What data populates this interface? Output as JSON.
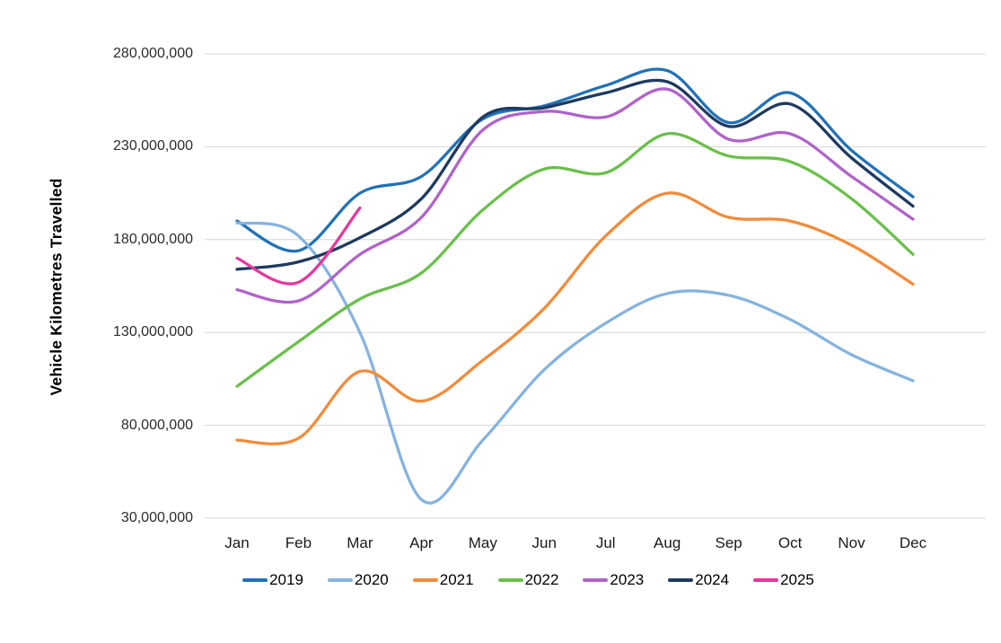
{
  "chart_data": {
    "type": "line",
    "title": "",
    "xlabel": "",
    "ylabel": "Vehicle Kilometres Travelled",
    "grid": "horizontal-only",
    "legend_position": "bottom",
    "smooth_lines": true,
    "categories": [
      "Jan",
      "Feb",
      "Mar",
      "Apr",
      "May",
      "Jun",
      "Jul",
      "Aug",
      "Sep",
      "Oct",
      "Nov",
      "Dec"
    ],
    "y_ticks": [
      30000000,
      80000000,
      130000000,
      180000000,
      230000000,
      280000000
    ],
    "y_tick_labels": [
      "30,000,000",
      "80,000,000",
      "130,000,000",
      "180,000,000",
      "230,000,000",
      "280,000,000"
    ],
    "ylim": [
      30000000,
      280000000
    ],
    "gridline_color": "#d6d6d6",
    "series": [
      {
        "name": "2019",
        "color": "#2272b6",
        "values": [
          190000000,
          174000000,
          205000000,
          214000000,
          245000000,
          252000000,
          263000000,
          271000000,
          243000000,
          259000000,
          228000000,
          203000000
        ]
      },
      {
        "name": "2020",
        "color": "#85b3df",
        "values": [
          189000000,
          182000000,
          130000000,
          40000000,
          72000000,
          110000000,
          135000000,
          151000000,
          150000000,
          137000000,
          118000000,
          104000000
        ]
      },
      {
        "name": "2021",
        "color": "#f08c3b",
        "values": [
          72000000,
          73000000,
          109000000,
          93000000,
          115000000,
          143000000,
          182000000,
          205000000,
          192000000,
          190000000,
          177000000,
          156000000
        ]
      },
      {
        "name": "2022",
        "color": "#6bbf4b",
        "values": [
          101000000,
          125000000,
          148000000,
          162000000,
          196000000,
          218000000,
          216000000,
          237000000,
          225000000,
          222000000,
          202000000,
          172000000
        ]
      },
      {
        "name": "2023",
        "color": "#af63c8",
        "values": [
          153000000,
          147000000,
          172000000,
          192000000,
          239000000,
          249000000,
          246000000,
          261000000,
          234000000,
          237000000,
          214000000,
          191000000
        ]
      },
      {
        "name": "2024",
        "color": "#1f3a5f",
        "values": [
          164000000,
          168000000,
          181000000,
          202000000,
          246000000,
          251000000,
          259000000,
          265000000,
          241000000,
          253000000,
          224000000,
          198000000
        ]
      },
      {
        "name": "2025",
        "color": "#e5399f",
        "values": [
          170000000,
          157000000,
          197000000,
          null,
          null,
          null,
          null,
          null,
          null,
          null,
          null,
          null
        ]
      }
    ]
  }
}
